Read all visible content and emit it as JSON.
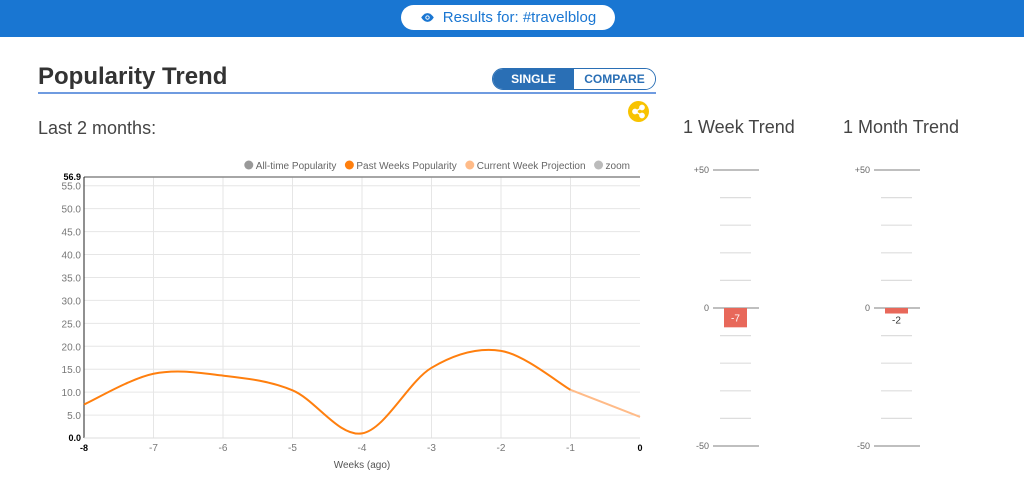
{
  "header": {
    "results_label": "Results for: #travelblog",
    "icon": "eye-icon",
    "color": "#1976d2"
  },
  "section": {
    "title": "Popularity Trend",
    "toggle": {
      "single": "SINGLE",
      "compare": "COMPARE",
      "active": "single"
    },
    "share_icon": "share-icon",
    "subtitle": "Last 2 months:"
  },
  "chart_data": [
    {
      "type": "line",
      "xlabel": "Weeks (ago)",
      "ylabel": "",
      "x_ticks": [
        "-8",
        "-7",
        "-6",
        "-5",
        "-4",
        "-3",
        "-2",
        "-1",
        "0"
      ],
      "y_ticks": [
        "0.0",
        "5.0",
        "10.0",
        "15.0",
        "20.0",
        "25.0",
        "30.0",
        "35.0",
        "40.0",
        "45.0",
        "50.0",
        "55.0",
        "56.9"
      ],
      "xlim": [
        -8,
        0
      ],
      "ylim": [
        0,
        56.9
      ],
      "grid": true,
      "legend_placement": "top-right",
      "legend": [
        {
          "name": "All-time Popularity",
          "color": "#999999"
        },
        {
          "name": "Past Weeks Popularity",
          "color": "#ff7f0e"
        },
        {
          "name": "Current Week Projection",
          "color": "#ffbb88"
        },
        {
          "name": "zoom",
          "color": "#bbbbbb"
        }
      ],
      "series": [
        {
          "name": "Past Weeks Popularity",
          "color": "#ff7f0e",
          "x": [
            -8,
            -7,
            -6,
            -5,
            -4,
            -3,
            -2,
            -1
          ],
          "y": [
            7.3,
            14.0,
            13.6,
            10.4,
            1.0,
            15.3,
            19.0,
            10.5
          ]
        },
        {
          "name": "Current Week Projection",
          "color": "#ffbb88",
          "x": [
            -1,
            0
          ],
          "y": [
            10.5,
            4.6
          ]
        }
      ]
    },
    {
      "type": "bar",
      "title": "1 Week Trend",
      "ylim": [
        -50,
        50
      ],
      "tick_labels": [
        "+50",
        "0",
        "-50"
      ],
      "values": [
        -7
      ],
      "value_labels": [
        "-7"
      ],
      "color": "#e8685a"
    },
    {
      "type": "bar",
      "title": "1 Month Trend",
      "ylim": [
        -50,
        50
      ],
      "tick_labels": [
        "+50",
        "0",
        "-50"
      ],
      "values": [
        -2
      ],
      "value_labels": [
        "-2"
      ],
      "color": "#e8685a"
    }
  ]
}
